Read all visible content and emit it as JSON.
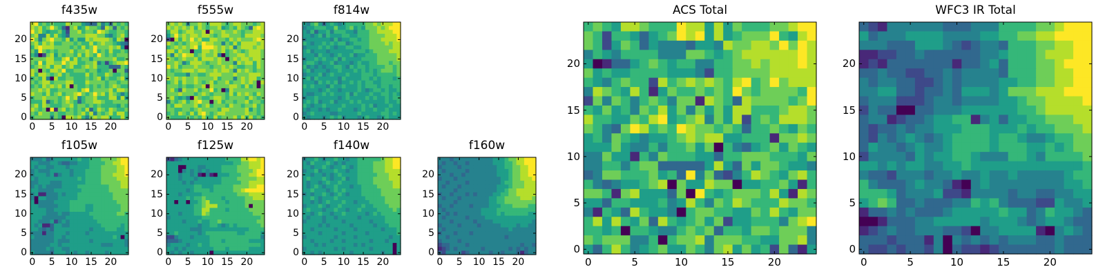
{
  "colormap": [
    "#440154",
    "#482878",
    "#3e4989",
    "#31688e",
    "#26828e",
    "#1f9e89",
    "#35b779",
    "#6ece58",
    "#b5de2b",
    "#fde725"
  ],
  "chart_data": [
    {
      "type": "heatmap",
      "title": "f435w",
      "xticks": [
        "0",
        "5",
        "10",
        "15",
        "20"
      ],
      "yticks": [
        "0",
        "5",
        "10",
        "15",
        "20"
      ],
      "xlim": [
        -0.5,
        24.5
      ],
      "ylim": [
        -0.5,
        24.5
      ],
      "rows_top_to_bottom": [
        "8967676668777543374637676",
        "8786797631785687763873767",
        "9786566752778677698766776",
        "7844868653777788877546786",
        "9747897768575587888875870",
        "7868786677767668678776543",
        "6898887777676867977787850",
        "7597676777867787967686676",
        "6402785767768687697676777",
        "7777886689686775777778667",
        "7696887797886677846267889",
        "6787868867866787866633376",
        "8707688796677767756670773",
        "8688767867666686766876676",
        "6768408667766676785766785",
        "7678867778866687777677677",
        "6768787868076676767678766",
        "7787866777776896777786887",
        "8776867867789767978687646",
        "6778777679784677866688585",
        "6668367678763677887667777",
        "7868766677867767676666576",
        "8767091786767683687687667",
        "7687767667767868476786886",
        "6777747608878647878866686"
      ]
    },
    {
      "type": "heatmap",
      "title": "f555w",
      "xticks": [
        "0",
        "5",
        "10",
        "15",
        "20"
      ],
      "yticks": [
        "0",
        "5",
        "10",
        "15",
        "20"
      ],
      "xlim": [
        -0.5,
        24.5
      ],
      "ylim": [
        -0.5,
        24.5
      ],
      "rows_top_to_bottom": [
        "7878747787688876788777678",
        "8787878687677856768763898",
        "6886788778087787787677888",
        "5797878878876788777688887",
        "2086879786688776878777898",
        "8767678879887747686888878",
        "6787878969998787847888788",
        "8868770668878786787678887",
        "7487988678778406778878887",
        "8767877868887870787887887",
        "7787468887677877748788687",
        "9786777877767787876677687",
        "7677888788778788748787677",
        "7766647766788877787778887",
        "8787877877778677747878867",
        "6786877876786778677878708",
        "7776766778087777887686707",
        "7863877867796704877777777",
        "7778777678767776868787687",
        "7865640876678876777768767",
        "4767867897707867767786776",
        "7688777867867776877677867",
        "7766776787777688777785767",
        "6768768689767887777787767",
        "7666676768668677786868676"
      ]
    },
    {
      "type": "heatmap",
      "title": "f814w",
      "xticks": [
        "0",
        "5",
        "10",
        "15",
        "20"
      ],
      "yticks": [
        "0",
        "5",
        "10",
        "15",
        "20"
      ],
      "xlim": [
        -0.5,
        24.5
      ],
      "ylim": [
        -0.5,
        24.5
      ],
      "rows_top_to_bottom": [
        "5467535654566666778788899",
        "4556665575567565777878999",
        "5463556466655466677888899",
        "5545646555665566677778889",
        "4555555464556656677788889",
        "6545565656645666677778788",
        "4555656545566556677777788",
        "5645554555555666567777888",
        "5554655456556455666777778",
        "4556565564655556666777778",
        "5665455645554565566777677",
        "6454545566546566566667767",
        "5645554556555656565677767",
        "4555645655565556665666667",
        "5646555554655556656566656",
        "5554656564556565665566666",
        "6565554655655565666566566",
        "5555456554555565456656556",
        "5445565655564655565566565",
        "4556555554565555656556566",
        "5656455645556565555556556",
        "6545565555655556564555655",
        "5455454556555456556556555",
        "4565555445555565555566565",
        "5455545656455545655456555"
      ]
    },
    {
      "type": "heatmap",
      "title": "f105w",
      "xticks": [
        "0",
        "5",
        "10",
        "15",
        "20"
      ],
      "yticks": [
        "0",
        "5",
        "10",
        "15",
        "20"
      ],
      "xlim": [
        -0.5,
        24.5
      ],
      "ylim": [
        -0.5,
        24.5
      ],
      "rows_top_to_bottom": [
        "4445345555556556667777899",
        "5544455433445556666778899",
        "5455445554555556667777889",
        "4544455555455566667777889",
        "4555452455455566667778889",
        "5455555555556566667777888",
        "4455544455555566667777788",
        "4545444455556666666677788",
        "5544445555555666666677777",
        "4511444545556666666667777",
        "4055444555556666666667777",
        "5044445555666666666666777",
        "5544444555666655666666677",
        "5555445555666655666666677",
        "5555444544555556666666776",
        "5554444445555555666666666",
        "5544452454555555566666666",
        "5451135544555555556666656",
        "5543435555555554555666556",
        "4441445554555545555555555",
        "5444445545555555555556505",
        "4444445444555554555555554",
        "4444455455555555554445554",
        "4444545544555555555555555",
        "5444435554545545555455555"
      ]
    },
    {
      "type": "heatmap",
      "title": "f125w",
      "xticks": [
        "0",
        "5",
        "10",
        "15",
        "20"
      ],
      "yticks": [
        "0",
        "5",
        "10",
        "15",
        "20"
      ],
      "xlim": [
        -0.5,
        24.5
      ],
      "ylim": [
        -0.5,
        24.5
      ],
      "rows_top_to_bottom": [
        "2134555555555556666889989",
        "5555555555555555566778889",
        "5550055544555566667778889",
        "5550454545455566667777899",
        "5554554510410555666778899",
        "5554555455555566667777788",
        "5555454555555566666778888",
        "5555555665556666677778899",
        "5555545666656666677899999",
        "5554555556666666667778888",
        "5555565667666656666677888",
        "5505505567866665666677777",
        "5555555667888666666670777",
        "5555555668866665666667777",
        "5554555668766666666666777",
        "4555555556666666666666667",
        "5555455565566766666666677",
        "5555555545566545656666667",
        "5555554445555555555556666",
        "5565555545666666665566665",
        "2245554555566666666666664",
        "3334555555566656666665555",
        "4555545565566666666666665",
        "5545455555556665666665555",
        "5454554555505555555555555"
      ]
    },
    {
      "type": "heatmap",
      "title": "f140w",
      "xticks": [
        "0",
        "5",
        "10",
        "15",
        "20"
      ],
      "yticks": [
        "0",
        "5",
        "10",
        "15",
        "20"
      ],
      "xlim": [
        -0.5,
        24.5
      ],
      "ylim": [
        -0.5,
        24.5
      ],
      "rows_top_to_bottom": [
        "4556545565545566666678899",
        "5465556545455566667778899",
        "5545565455654566667778899",
        "4556455565545566667778888",
        "5545545456555566666777888",
        "5655565455645566667777888",
        "5455456556555566667777788",
        "5456545565554556666777788",
        "5565554565655556666677777",
        "4545565456545556666677777",
        "5565455565555555666667777",
        "5545456555655455566667777",
        "4555654556555556556666777",
        "5655545565545565555666676",
        "5545655455655555456566666",
        "5455545545555545555556666",
        "4555545555455555545556666",
        "5555454555554555554555666",
        "5545555545555455555545556",
        "5555455555455555455555556",
        "4555555545555455555555455",
        "5545555455455555545554555",
        "5554545555555454555555505",
        "4555555545455555545555505",
        "5545455555554555555545505"
      ]
    },
    {
      "type": "heatmap",
      "title": "f160w",
      "xticks": [
        "0",
        "5",
        "10",
        "15",
        "20"
      ],
      "yticks": [
        "0",
        "5",
        "10",
        "15",
        "20"
      ],
      "xlim": [
        -0.5,
        24.5
      ],
      "ylim": [
        -0.5,
        24.5
      ],
      "rows_top_to_bottom": [
        "4443444444444455567788999",
        "4344344344444455566788999",
        "3444434444444445566778899",
        "4344444344444445556778899",
        "4443443444444445556778899",
        "3444344444444444556778889",
        "4434444344444444566777888",
        "4344434444444445556777888",
        "4444344444444445567788888",
        "3443444343444455667788888",
        "4344434444444556677778887",
        "4444344444444556677777777",
        "3443444434444555666777766",
        "4344444444455556666666666",
        "4434344444455556566666655",
        "4344444344445555555555555",
        "4443444443444455555555554",
        "3444434444344444555545544",
        "4344444444444444445444444",
        "3444344434444444444444444",
        "4434444444444444434444444",
        "3444434444444444444444444",
        "2334444344444444444443443",
        "1234344444434444443434344",
        "3244442344444344344431344"
      ]
    },
    {
      "type": "heatmap",
      "title": "ACS Total",
      "xticks": [
        "0",
        "5",
        "10",
        "15",
        "20"
      ],
      "yticks": [
        "0",
        "5",
        "10",
        "15",
        "20"
      ],
      "xlim": [
        -0.5,
        24.5
      ],
      "ylim": [
        -0.5,
        24.5
      ],
      "rows_top_to_bottom": [
        "6765887666988585766677899",
        "7626653567989585677796589",
        "7625763544435548778879798",
        "4654666644477656788888898",
        "5013356765664466778788898",
        "7565566665554266777788888",
        "6546766286787876896797888",
        "4876586157667676976777769",
        "2747646764771876387777679",
        "6575647685747575886667887",
        "8665576895678475826768887",
        "7643798676987767636676576",
        "5647654556787885566617787",
        "5557544646675706435675765",
        "4475516476665536677766657",
        "4466467733333585375776554",
        "3477666756394732468765786",
        "6434556780755877055667516",
        "7761785553709656777685187",
        "5536655564586476876668776",
        "4165386554067766557686577",
        "6858657386567572556664789",
        "6656066544676736657767774",
        "7677744606778477766557784",
        "5368645675576478575627315"
      ]
    },
    {
      "type": "heatmap",
      "title": "WFC3 IR Total",
      "xticks": [
        "0",
        "5",
        "10",
        "15",
        "20"
      ],
      "yticks": [
        "0",
        "5",
        "10",
        "15",
        "20"
      ],
      "xlim": [
        -0.5,
        24.5
      ],
      "ylim": [
        -0.5,
        24.5
      ],
      "rows_top_to_bottom": [
        "3214444443334446666778999",
        "5344455554444556677889999",
        "4443335554323443666778899",
        "1122334333333445666788899",
        "1213333333133453666778999",
        "3343322334344443666778899",
        "4344332234344445566778899",
        "4455332334355545777888999",
        "3444222344344445567788889",
        "2433003344455555566788888",
        "3441233455661453556677788",
        "3233434455566655565667778",
        "3243454345666656654456677",
        "3544345445666656665565677",
        "2444435455665444665466667",
        "5545455445565555555555556",
        "4332444344544544544444566",
        "6433345443104544444444556",
        "6665344452214444344334455",
        "5676334333446564333225445",
        "1334343334555556553465543",
        "0013334455555455543455433",
        "1234334443320445555104543",
        "3332333140434343444334333",
        "3223233240322123333334333"
      ]
    }
  ]
}
